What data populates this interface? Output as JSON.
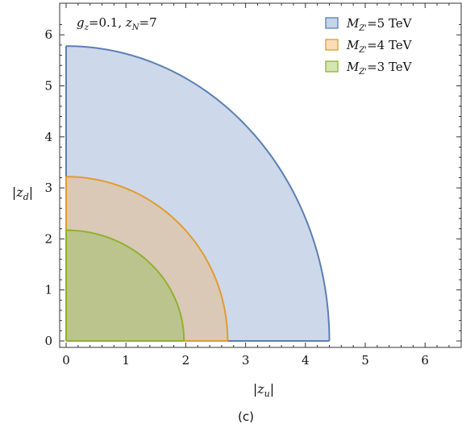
{
  "chart_data": {
    "type": "area",
    "annotation": "g_z=0.1, z_N=7",
    "xlabel": "|z_u|",
    "ylabel": "|z_d|",
    "caption": "(c)",
    "xlim": [
      0,
      6.5
    ],
    "ylim": [
      -0.1,
      6.3
    ],
    "xticks": [
      0,
      1,
      2,
      3,
      4,
      5,
      6
    ],
    "yticks": [
      0,
      1,
      2,
      3,
      4,
      5,
      6
    ],
    "grid": false,
    "legend_position": "top-right",
    "series": [
      {
        "name": "M_Z'=5 TeV",
        "x_max": 4.4,
        "y_max": 5.78,
        "stroke": "#5b7fb3",
        "fill": "#cdd8ea"
      },
      {
        "name": "M_Z'=4 TeV",
        "x_max": 2.7,
        "y_max": 3.22,
        "stroke": "#e19c2d",
        "fill": "#d9c9b6"
      },
      {
        "name": "M_Z'=3 TeV",
        "x_max": 1.97,
        "y_max": 2.17,
        "stroke": "#8fb12f",
        "fill": "#bcc48e"
      }
    ],
    "legend_fills": [
      "#c8d3e8",
      "#f9ddb8",
      "#d4e6b2"
    ]
  }
}
